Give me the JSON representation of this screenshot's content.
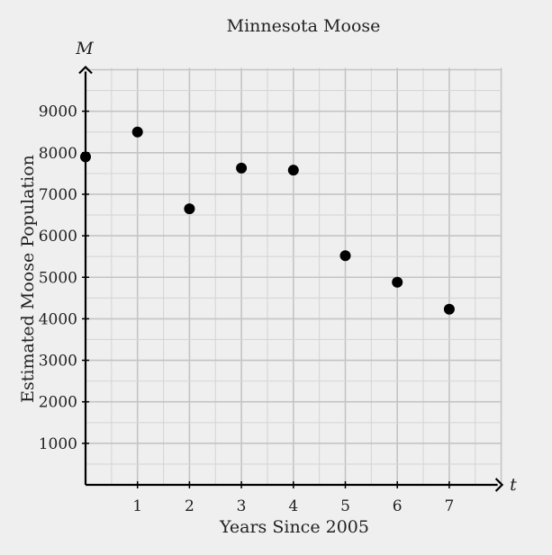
{
  "chart_data": {
    "type": "scatter",
    "title": "Minnesota Moose",
    "xlabel": "Years Since 2005",
    "ylabel": "Estimated Moose Population",
    "x_axis_var": "t",
    "y_axis_var": "M",
    "xlim": [
      0,
      8
    ],
    "ylim": [
      0,
      10000
    ],
    "x_ticks": [
      1,
      2,
      3,
      4,
      5,
      6,
      7
    ],
    "y_ticks": [
      1000,
      2000,
      3000,
      4000,
      5000,
      6000,
      7000,
      8000,
      9000
    ],
    "x_tick_labels": [
      "1",
      "2",
      "3",
      "4",
      "5",
      "6",
      "7"
    ],
    "y_tick_labels": [
      "1000",
      "2000",
      "3000",
      "4000",
      "5000",
      "6000",
      "7000",
      "8000",
      "9000"
    ],
    "grid": true,
    "points": [
      {
        "x": 0,
        "y": 7900
      },
      {
        "x": 1,
        "y": 8500
      },
      {
        "x": 2,
        "y": 6650
      },
      {
        "x": 3,
        "y": 7630
      },
      {
        "x": 4,
        "y": 7580
      },
      {
        "x": 5,
        "y": 5520
      },
      {
        "x": 6,
        "y": 4880
      },
      {
        "x": 7,
        "y": 4230
      }
    ],
    "colors": {
      "background": "#efefef",
      "grid_major": "#c4c4c4",
      "grid_minor": "#d6d6d6",
      "axis": "#000000",
      "point": "#000000",
      "text": "#222222"
    }
  }
}
